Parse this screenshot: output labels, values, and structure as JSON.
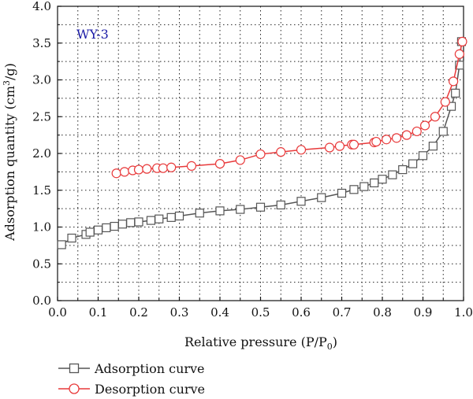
{
  "chart_data": {
    "type": "line",
    "annotation": "WY-3",
    "annotation_color": "#1a1aa6",
    "xlabel_main": "Relative pressure (P/P",
    "xlabel_sub": "0",
    "xlabel_end": ")",
    "ylabel_main": "Adsorption quantity (cm",
    "ylabel_sup": "3",
    "ylabel_end": "/g)",
    "xlim": [
      0.0,
      1.0
    ],
    "ylim": [
      0.0,
      4.0
    ],
    "x_ticks": [
      "0.0",
      "0.1",
      "0.2",
      "0.3",
      "0.4",
      "0.5",
      "0.6",
      "0.7",
      "0.8",
      "0.9",
      "1.0"
    ],
    "y_ticks": [
      "0.0",
      "0.5",
      "1.0",
      "1.5",
      "2.0",
      "2.5",
      "3.0",
      "3.5",
      "4.0"
    ],
    "grid": true,
    "legend_position": "below",
    "series": [
      {
        "name": "Adsorption curve",
        "color": "#555555",
        "marker": "square",
        "x": [
          0.01,
          0.035,
          0.07,
          0.08,
          0.1,
          0.12,
          0.14,
          0.16,
          0.18,
          0.2,
          0.23,
          0.25,
          0.28,
          0.3,
          0.35,
          0.4,
          0.45,
          0.5,
          0.55,
          0.6,
          0.65,
          0.7,
          0.73,
          0.755,
          0.78,
          0.8,
          0.825,
          0.85,
          0.875,
          0.9,
          0.925,
          0.95,
          0.97,
          0.98,
          0.99,
          0.995
        ],
        "y": [
          0.76,
          0.85,
          0.9,
          0.93,
          0.96,
          0.99,
          1.01,
          1.04,
          1.06,
          1.07,
          1.09,
          1.11,
          1.13,
          1.15,
          1.19,
          1.22,
          1.24,
          1.27,
          1.3,
          1.35,
          1.4,
          1.46,
          1.51,
          1.55,
          1.6,
          1.65,
          1.71,
          1.78,
          1.86,
          1.97,
          2.1,
          2.3,
          2.64,
          2.82,
          3.2,
          3.52
        ]
      },
      {
        "name": "Desorption curve",
        "color": "#e8393a",
        "marker": "circle",
        "x": [
          0.145,
          0.165,
          0.185,
          0.2,
          0.22,
          0.245,
          0.26,
          0.28,
          0.33,
          0.4,
          0.45,
          0.5,
          0.55,
          0.6,
          0.67,
          0.695,
          0.725,
          0.73,
          0.78,
          0.785,
          0.81,
          0.835,
          0.86,
          0.885,
          0.905,
          0.93,
          0.955,
          0.975,
          0.99,
          0.997
        ],
        "y": [
          1.73,
          1.75,
          1.77,
          1.78,
          1.79,
          1.8,
          1.8,
          1.81,
          1.83,
          1.86,
          1.91,
          1.99,
          2.02,
          2.05,
          2.08,
          2.1,
          2.12,
          2.12,
          2.15,
          2.16,
          2.19,
          2.21,
          2.25,
          2.3,
          2.38,
          2.5,
          2.7,
          2.98,
          3.35,
          3.52
        ]
      }
    ]
  }
}
